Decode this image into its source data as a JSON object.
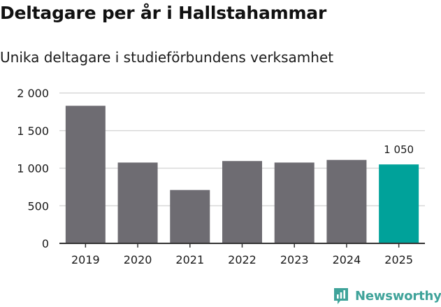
{
  "chart_data": {
    "type": "bar",
    "title": "Deltagare per år i Hallstahammar",
    "subtitle": "Unika deltagare i studieförbundens verksamhet",
    "xlabel": "",
    "ylabel": "",
    "categories": [
      "2019",
      "2020",
      "2021",
      "2022",
      "2023",
      "2024",
      "2025"
    ],
    "values": [
      1830,
      1075,
      710,
      1095,
      1075,
      1110,
      1050
    ],
    "ylim": [
      0,
      2000
    ],
    "yticks": [
      0,
      500,
      1000,
      1500,
      2000
    ],
    "ytick_labels": [
      "0",
      "500",
      "1 000",
      "1 500",
      "2 000"
    ],
    "grid": true,
    "highlight_index": 6,
    "highlight_label": "1 050",
    "colors": {
      "bar": "#6e6c72",
      "highlight": "#00a29a",
      "grid": "#d9d9d9",
      "axis": "#333333",
      "text": "#1a1a1a"
    }
  },
  "brand": {
    "name": "Newsworthy",
    "icon": "newsworthy-logo-icon",
    "color": "#3fa39a"
  }
}
